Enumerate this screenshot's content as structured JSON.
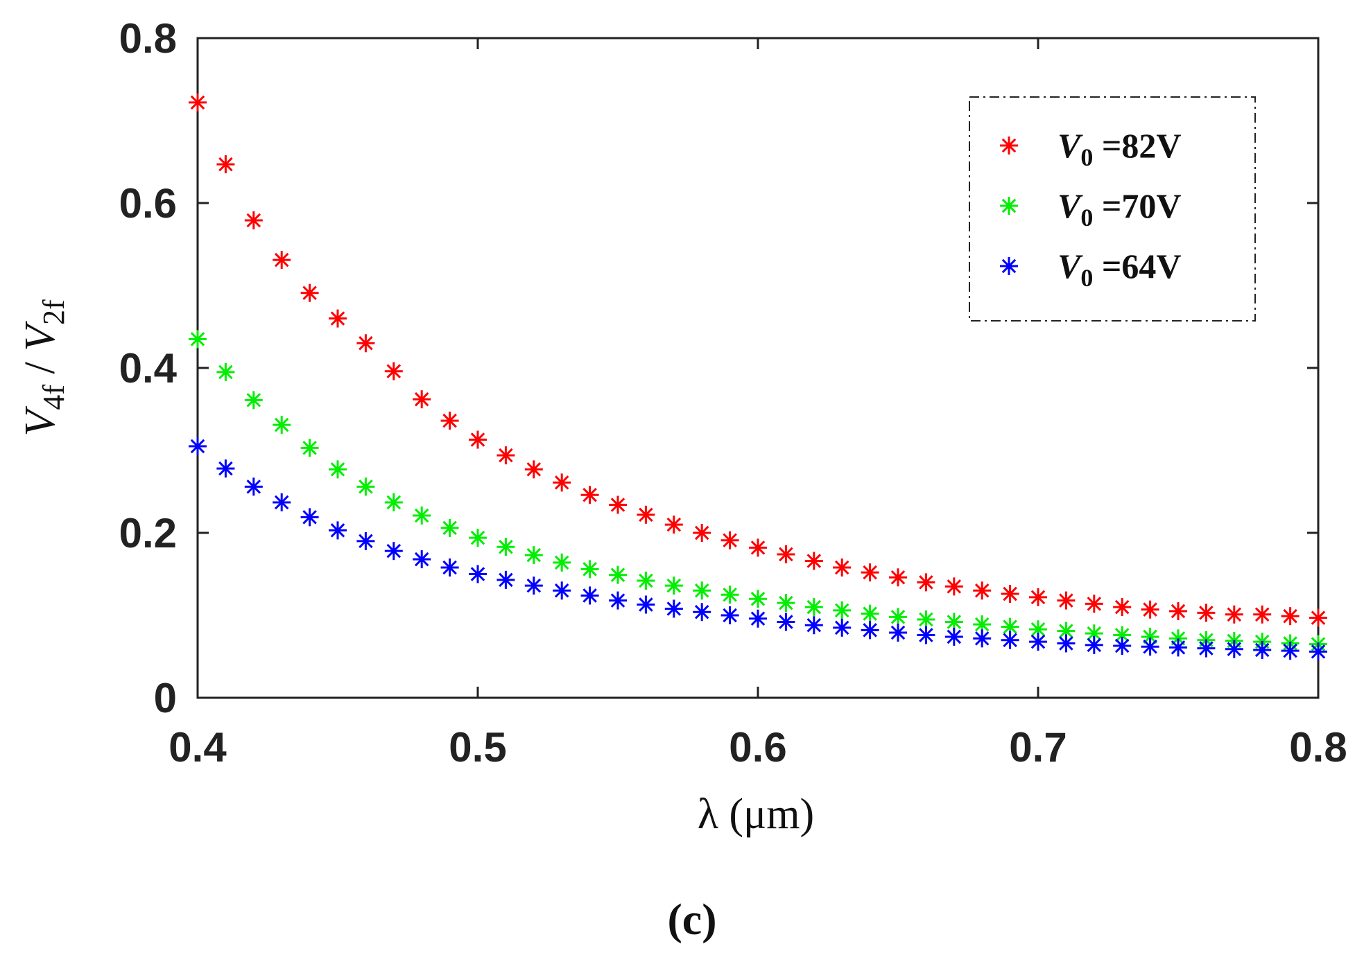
{
  "chart_data": {
    "type": "scatter",
    "x": [
      0.4,
      0.41,
      0.42,
      0.43,
      0.44,
      0.45,
      0.46,
      0.47,
      0.48,
      0.49,
      0.5,
      0.51,
      0.52,
      0.53,
      0.54,
      0.55,
      0.56,
      0.57,
      0.58,
      0.59,
      0.6,
      0.61,
      0.62,
      0.63,
      0.64,
      0.65,
      0.66,
      0.67,
      0.68,
      0.69,
      0.7,
      0.71,
      0.72,
      0.73,
      0.74,
      0.75,
      0.76,
      0.77,
      0.78,
      0.79,
      0.8
    ],
    "series": [
      {
        "name_base": "V",
        "name_sub": "0",
        "name_rest": " =82V",
        "color": "#ff0000",
        "values": [
          0.722,
          0.647,
          0.579,
          0.531,
          0.491,
          0.46,
          0.43,
          0.396,
          0.362,
          0.336,
          0.313,
          0.294,
          0.277,
          0.261,
          0.246,
          0.234,
          0.222,
          0.21,
          0.2,
          0.191,
          0.182,
          0.174,
          0.166,
          0.158,
          0.152,
          0.146,
          0.14,
          0.135,
          0.13,
          0.126,
          0.122,
          0.118,
          0.114,
          0.11,
          0.107,
          0.105,
          0.103,
          0.101,
          0.101,
          0.099,
          0.097
        ]
      },
      {
        "name_base": "V",
        "name_sub": "0",
        "name_rest": " =70V",
        "color": "#00ee00",
        "values": [
          0.435,
          0.395,
          0.361,
          0.331,
          0.303,
          0.277,
          0.256,
          0.237,
          0.221,
          0.206,
          0.194,
          0.183,
          0.173,
          0.164,
          0.156,
          0.149,
          0.142,
          0.136,
          0.13,
          0.125,
          0.12,
          0.115,
          0.11,
          0.106,
          0.102,
          0.098,
          0.095,
          0.092,
          0.089,
          0.086,
          0.083,
          0.081,
          0.078,
          0.076,
          0.074,
          0.072,
          0.07,
          0.069,
          0.068,
          0.066,
          0.065
        ]
      },
      {
        "name_base": "V",
        "name_sub": "0",
        "name_rest": " =64V",
        "color": "#0000ff",
        "values": [
          0.305,
          0.278,
          0.256,
          0.237,
          0.219,
          0.203,
          0.19,
          0.178,
          0.168,
          0.158,
          0.15,
          0.143,
          0.136,
          0.13,
          0.124,
          0.118,
          0.113,
          0.108,
          0.104,
          0.1,
          0.096,
          0.092,
          0.088,
          0.085,
          0.082,
          0.079,
          0.076,
          0.074,
          0.072,
          0.07,
          0.068,
          0.066,
          0.064,
          0.063,
          0.062,
          0.061,
          0.06,
          0.059,
          0.058,
          0.057,
          0.056
        ]
      }
    ],
    "x_ticks": [
      "0.4",
      "0.5",
      "0.6",
      "0.7",
      "0.8"
    ],
    "y_ticks": [
      "0",
      "0.2",
      "0.4",
      "0.6",
      "0.8"
    ],
    "xlim": [
      0.4,
      0.8
    ],
    "ylim": [
      0,
      0.8
    ],
    "xlabel": "λ (μm)",
    "ylabel": {
      "a": "V",
      "a_sub": "4f",
      "sep": " / ",
      "b": "V",
      "b_sub": "2f"
    },
    "legend_position": "top-right",
    "grid": false,
    "caption": "(c)"
  }
}
